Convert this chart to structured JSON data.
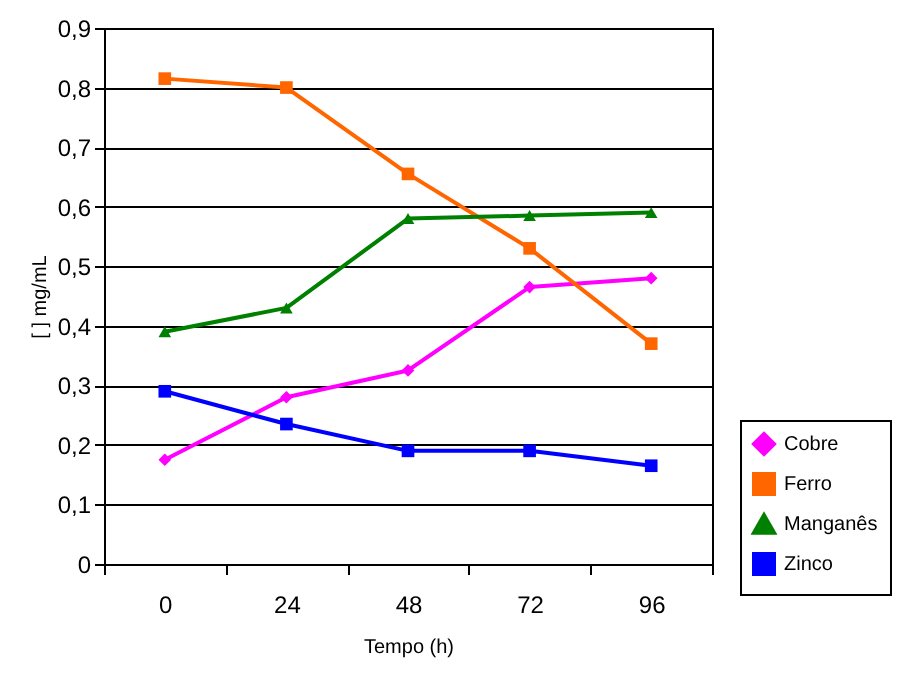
{
  "chart_data": {
    "type": "line",
    "xlabel": "Tempo (h)",
    "ylabel": "[ ] mg/mL",
    "categories": [
      "0",
      "24",
      "48",
      "72",
      "96"
    ],
    "series": [
      {
        "name": "Cobre",
        "color": "#ff00ff",
        "marker": "diamond",
        "values": [
          0.175,
          0.28,
          0.325,
          0.465,
          0.48
        ]
      },
      {
        "name": "Ferro",
        "color": "#ff6600",
        "marker": "square",
        "values": [
          0.815,
          0.8,
          0.655,
          0.53,
          0.37
        ]
      },
      {
        "name": "Manganês",
        "color": "#008000",
        "marker": "triangle",
        "values": [
          0.39,
          0.43,
          0.58,
          0.585,
          0.59
        ]
      },
      {
        "name": "Zinco",
        "color": "#0000ff",
        "marker": "square",
        "values": [
          0.29,
          0.235,
          0.19,
          0.19,
          0.165
        ]
      }
    ],
    "ylim": [
      0,
      0.9
    ],
    "yticks": [
      0,
      {
        "value": 0.1,
        "label": "0,1"
      },
      {
        "value": 0.2,
        "label": "0,2"
      },
      {
        "value": 0.3,
        "label": "0,3"
      },
      {
        "value": 0.4,
        "label": "0,4"
      },
      {
        "value": 0.5,
        "label": "0,5"
      },
      {
        "value": 0.6,
        "label": "0,6"
      },
      {
        "value": 0.7,
        "label": "0,7"
      },
      {
        "value": 0.8,
        "label": "0,8"
      },
      {
        "value": 0.9,
        "label": "0,9"
      }
    ],
    "grid": "y",
    "legend": "right"
  }
}
